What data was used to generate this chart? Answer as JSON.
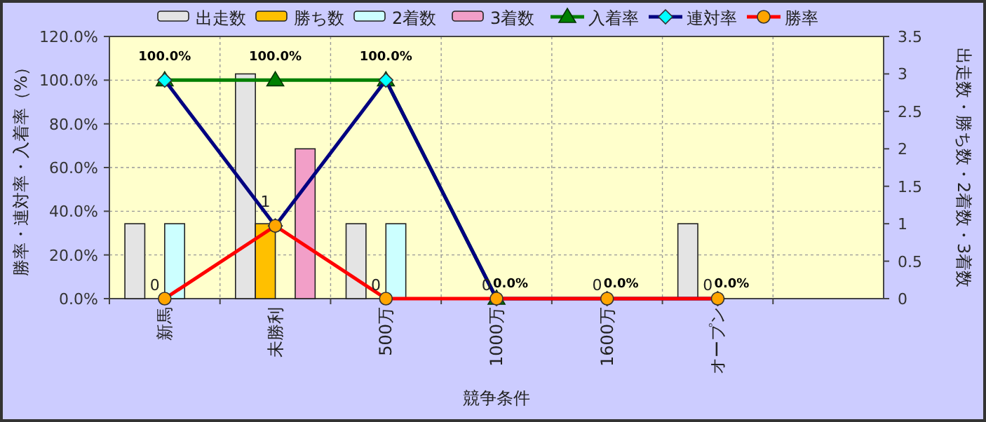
{
  "chart_data": {
    "type": "bar",
    "xlabel": "競争条件",
    "ylabel": "勝率・連対率・入着率（%）",
    "y2label": "出走数・勝ち数・2着数・3着数",
    "categories": [
      "新馬",
      "未勝利",
      "500万",
      "1000万",
      "1600万",
      "オープン",
      null
    ],
    "ylim": [
      0,
      120
    ],
    "yticks": [
      {
        "value": 0,
        "label": "0.0%"
      },
      {
        "value": 20,
        "label": "20.0%"
      },
      {
        "value": 40,
        "label": "40.0%"
      },
      {
        "value": 60,
        "label": "60.0%"
      },
      {
        "value": 80,
        "label": "80.0%"
      },
      {
        "value": 100,
        "label": "100.0%"
      },
      {
        "value": 120,
        "label": "120.0%"
      }
    ],
    "y2lim": [
      0,
      3.5
    ],
    "y2ticks": [
      0,
      0.5,
      1,
      1.5,
      2,
      2.5,
      3,
      3.5
    ],
    "grid": true,
    "legend": "top",
    "series": [
      {
        "name": "出走数",
        "axis": "y2",
        "color": "#e4e4e4",
        "values": [
          1,
          3,
          1,
          0,
          0,
          1,
          null
        ]
      },
      {
        "name": "勝ち数",
        "axis": "y2",
        "color": "#ffc000",
        "values": [
          0,
          1,
          0,
          0,
          0,
          0,
          null
        ],
        "value_labels": [
          "0",
          "1",
          "0",
          "0",
          "0",
          "0",
          null
        ]
      },
      {
        "name": "2着数",
        "axis": "y2",
        "color": "#ccffff",
        "values": [
          1,
          0,
          1,
          0,
          0,
          0,
          null
        ]
      },
      {
        "name": "3着数",
        "axis": "y2",
        "color": "#f29fc8",
        "values": [
          0,
          2,
          0,
          0,
          0,
          0,
          null
        ]
      },
      {
        "name": "入着率",
        "type": "line",
        "color": "#008000",
        "marker": "triangle",
        "values": [
          100,
          100,
          100,
          0,
          null,
          null,
          null
        ],
        "value_labels": [
          "100.0%",
          "100.0%",
          "100.0%",
          "0.0%",
          null,
          null,
          null
        ]
      },
      {
        "name": "連対率",
        "type": "line",
        "color": "#000080",
        "marker": "diamond",
        "values": [
          100,
          33.3,
          100,
          0,
          0,
          0,
          null
        ]
      },
      {
        "name": "勝率",
        "type": "line",
        "color": "#ff0000",
        "marker": "circle",
        "values": [
          0,
          33.3,
          0,
          0,
          0,
          0,
          null
        ],
        "value_labels": [
          null,
          null,
          null,
          null,
          "0.0%",
          "0.0%",
          null
        ]
      }
    ]
  }
}
